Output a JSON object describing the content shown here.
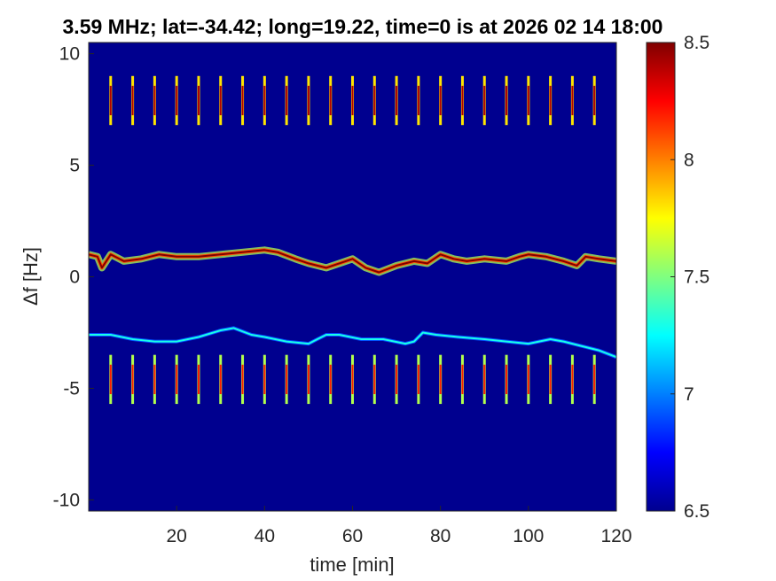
{
  "figure": {
    "title": "3.59 MHz;  lat=-34.42; long=19.22, time=0 is at 2026 02 14 18:00"
  },
  "chart_data": {
    "type": "heatmap",
    "title": "3.59 MHz;  lat=-34.42; long=19.22, time=0 is at 2026 02 14 18:00",
    "xlabel": "time [min]",
    "ylabel": "Δf [Hz]",
    "xlim": [
      0,
      120
    ],
    "ylim": [
      -10.5,
      10.5
    ],
    "x_ticks": [
      20,
      40,
      60,
      80,
      100,
      120
    ],
    "x_tick_labels": [
      "20",
      "40",
      "60",
      "80",
      "100",
      "120"
    ],
    "y_ticks": [
      10,
      5,
      0,
      -5,
      -10
    ],
    "y_tick_labels": [
      "10",
      "5",
      "0",
      "-5",
      "-10"
    ],
    "colorbar": {
      "colormap": "jet",
      "clim": [
        6.5,
        8.5
      ],
      "ticks": [
        8.5,
        8,
        7.5,
        7,
        6.5
      ],
      "tick_labels": [
        "8.5",
        "8",
        "7.5",
        "7",
        "6.5"
      ]
    },
    "background_level": 6.5,
    "traces": [
      {
        "name": "main",
        "level": 8.5,
        "points": [
          [
            0,
            1.0
          ],
          [
            2,
            0.9
          ],
          [
            3,
            0.4
          ],
          [
            5,
            1.0
          ],
          [
            8,
            0.7
          ],
          [
            12,
            0.8
          ],
          [
            16,
            1.0
          ],
          [
            20,
            0.9
          ],
          [
            25,
            0.9
          ],
          [
            30,
            1.0
          ],
          [
            35,
            1.1
          ],
          [
            40,
            1.2
          ],
          [
            43,
            1.1
          ],
          [
            47,
            0.8
          ],
          [
            50,
            0.6
          ],
          [
            54,
            0.4
          ],
          [
            57,
            0.6
          ],
          [
            60,
            0.8
          ],
          [
            63,
            0.4
          ],
          [
            66,
            0.2
          ],
          [
            70,
            0.5
          ],
          [
            74,
            0.7
          ],
          [
            77,
            0.6
          ],
          [
            80,
            1.0
          ],
          [
            83,
            0.8
          ],
          [
            86,
            0.7
          ],
          [
            90,
            0.8
          ],
          [
            95,
            0.7
          ],
          [
            98,
            0.9
          ],
          [
            100,
            1.0
          ],
          [
            104,
            0.9
          ],
          [
            108,
            0.7
          ],
          [
            111,
            0.5
          ],
          [
            113,
            0.9
          ],
          [
            116,
            0.8
          ],
          [
            120,
            0.7
          ]
        ]
      },
      {
        "name": "lower",
        "level": 7.3,
        "points": [
          [
            0,
            -2.6
          ],
          [
            5,
            -2.6
          ],
          [
            10,
            -2.8
          ],
          [
            15,
            -2.9
          ],
          [
            20,
            -2.9
          ],
          [
            25,
            -2.7
          ],
          [
            30,
            -2.4
          ],
          [
            33,
            -2.3
          ],
          [
            37,
            -2.6
          ],
          [
            40,
            -2.7
          ],
          [
            45,
            -2.9
          ],
          [
            50,
            -3.0
          ],
          [
            52,
            -2.8
          ],
          [
            54,
            -2.6
          ],
          [
            57,
            -2.6
          ],
          [
            62,
            -2.8
          ],
          [
            67,
            -2.8
          ],
          [
            72,
            -3.0
          ],
          [
            74,
            -2.9
          ],
          [
            76,
            -2.5
          ],
          [
            79,
            -2.6
          ],
          [
            84,
            -2.7
          ],
          [
            90,
            -2.8
          ],
          [
            95,
            -2.9
          ],
          [
            100,
            -3.0
          ],
          [
            105,
            -2.8
          ],
          [
            108,
            -2.9
          ],
          [
            112,
            -3.1
          ],
          [
            116,
            -3.3
          ],
          [
            120,
            -3.6
          ]
        ]
      }
    ],
    "periodic_bursts": [
      {
        "name": "upper-band",
        "center": 7.9,
        "half_width": 1.1,
        "period_min": 5,
        "start_min": 0,
        "level": 8.4
      },
      {
        "name": "lower-band",
        "center": -4.6,
        "half_width": 1.1,
        "period_min": 5,
        "start_min": 0,
        "level": 8.2
      }
    ]
  }
}
